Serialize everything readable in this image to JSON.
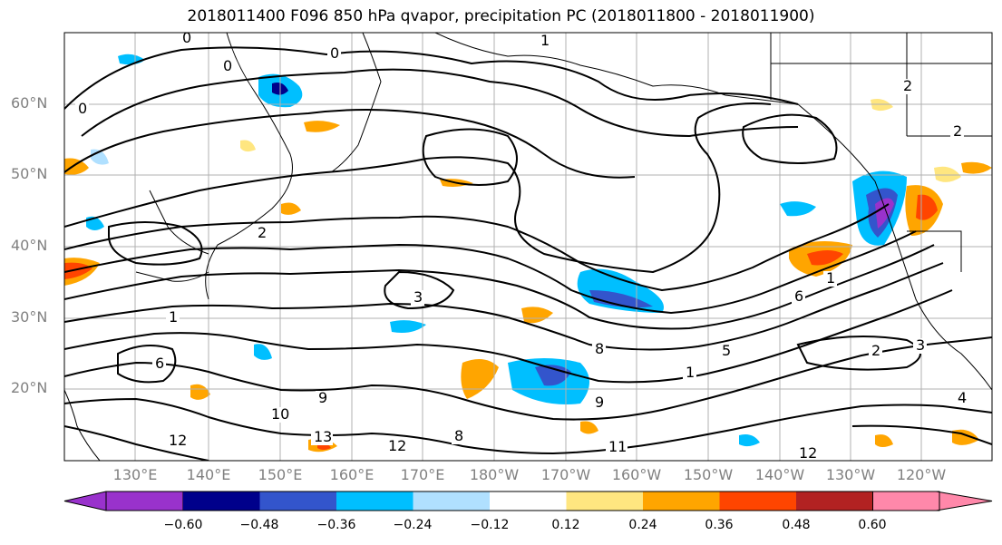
{
  "title": "2018011400 F096 850 hPa qvapor, precipitation PC (2018011800 - 2018011900)",
  "map": {
    "lat_labels": [
      "60°N",
      "50°N",
      "40°N",
      "30°N",
      "20°N"
    ],
    "lon_labels": [
      "130°E",
      "140°E",
      "150°E",
      "160°E",
      "170°E",
      "180°W",
      "170°W",
      "160°W",
      "150°W",
      "140°W",
      "130°W",
      "120°W"
    ],
    "contour_labels": [
      "0",
      "0",
      "0",
      "0",
      "1",
      "2",
      "2",
      "3",
      "1",
      "6",
      "9",
      "10",
      "12",
      "13",
      "12",
      "8",
      "8",
      "9",
      "11",
      "12",
      "5",
      "6",
      "1",
      "2",
      "3",
      "4",
      "2",
      "1"
    ],
    "colors": {
      "land_line": "#000000",
      "grid": "#b0b0b0",
      "contour": "#000000"
    }
  },
  "colorbar": {
    "colors": [
      "#9932cc",
      "#00008b",
      "#3355cc",
      "#00bfff",
      "#b0e0ff",
      "#ffffff",
      "#ffe680",
      "#ffa500",
      "#ff4500",
      "#b22222",
      "#ff88aa"
    ],
    "ticks": [
      "−0.60",
      "−0.48",
      "−0.36",
      "−0.24",
      "−0.12",
      "0.12",
      "0.24",
      "0.36",
      "0.48",
      "0.60"
    ]
  }
}
